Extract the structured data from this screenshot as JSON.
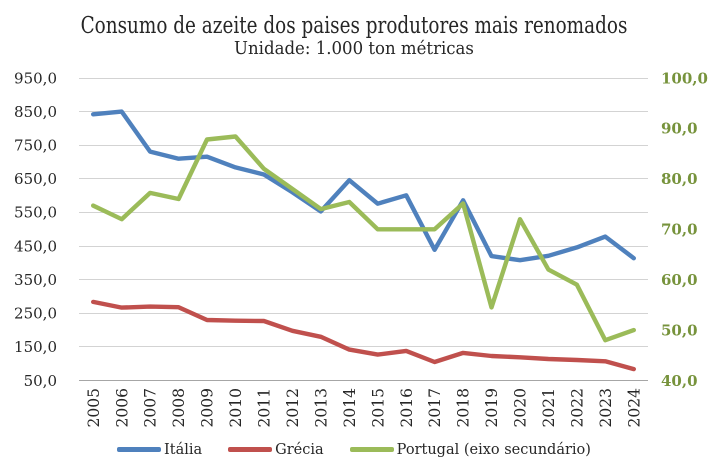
{
  "title": "Consumo de azeite dos paises produtores mais renomados",
  "subtitle": "Unidade: 1.000 ton métricas",
  "chart_data": {
    "type": "line",
    "title": "Consumo de azeite dos paises produtores mais renomados",
    "subtitle": "Unidade: 1.000 ton métricas",
    "categories": [
      "2005",
      "2006",
      "2007",
      "2008",
      "2009",
      "2010",
      "2011",
      "2012",
      "2013",
      "2014",
      "2015",
      "2016",
      "2017",
      "2018",
      "2019",
      "2020",
      "2021",
      "2022",
      "2023",
      "2024"
    ],
    "series": [
      {
        "name": "Itália",
        "axis": "left",
        "color": "#4F81BD",
        "values": [
          842,
          850,
          731,
          710,
          716,
          684,
          663,
          610,
          553,
          646,
          576,
          601,
          439,
          586,
          420,
          408,
          421,
          446,
          478,
          414
        ]
      },
      {
        "name": "Grécia",
        "axis": "left",
        "color": "#C0504D",
        "values": [
          284,
          267,
          270,
          268,
          230,
          228,
          227,
          198,
          180,
          142,
          127,
          138,
          105,
          132,
          123,
          119,
          114,
          111,
          107,
          84
        ]
      },
      {
        "name": "Portugal (eixo secundário)",
        "axis": "right",
        "color": "#9BBB59",
        "values": [
          74.7,
          72,
          77.2,
          76,
          87.8,
          88.4,
          82,
          78,
          74,
          75.4,
          70,
          70,
          70,
          75.1,
          54.5,
          72,
          62,
          59,
          48,
          50
        ]
      }
    ],
    "left_axis": {
      "min": 50,
      "max": 950,
      "step": 100,
      "tick_labels": [
        "950,0",
        "850,0",
        "750,0",
        "650,0",
        "550,0",
        "450,0",
        "350,0",
        "250,0",
        "150,0",
        "50,0"
      ],
      "text_color": "#262626"
    },
    "right_axis": {
      "min": 40,
      "max": 100,
      "step": 10,
      "tick_labels": [
        "100,0",
        "90,0",
        "80,0",
        "70,0",
        "60,0",
        "50,0",
        "40,0"
      ],
      "text_color": "#77933C"
    },
    "grid": true,
    "gridline_color": "#D3D3D3",
    "axisline_color": "#A6A6A6",
    "legend_position": "bottom"
  }
}
